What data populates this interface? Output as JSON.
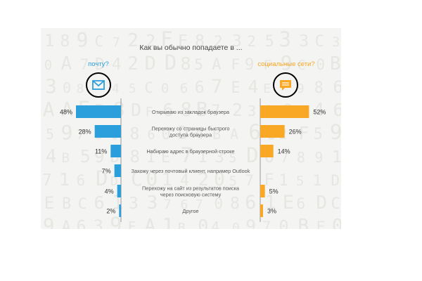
{
  "chart_data": {
    "type": "bar",
    "title": "Как вы обычно попадаете в ...",
    "series": [
      {
        "name": "почту?",
        "color": "#2a9fdc",
        "icon": "envelope-icon",
        "values": [
          48,
          28,
          11,
          7,
          4,
          2
        ],
        "value_labels": [
          "48%",
          "28%",
          "11%",
          "7%",
          "4%",
          "2%"
        ]
      },
      {
        "name": "социальные сети?",
        "color": "#f9a825",
        "icon": "speech-bubble-icon",
        "values": [
          52,
          26,
          14,
          0,
          5,
          3
        ],
        "value_labels": [
          "52%",
          "26%",
          "14%",
          "",
          "5%",
          "3%"
        ]
      }
    ],
    "categories": [
      [
        "Открываю из закладок браузера"
      ],
      [
        "Перехожу со страницы быстрого",
        "доступа браузера"
      ],
      [
        "Набираю адрес в браузерной строке"
      ],
      [
        "Захожу через почтовый клиент, например Outlook"
      ],
      [
        "Перехожу на сайт из результатов поиска",
        "через поисковую систему"
      ],
      [
        "Другое"
      ]
    ],
    "axis_color": "#999999"
  }
}
